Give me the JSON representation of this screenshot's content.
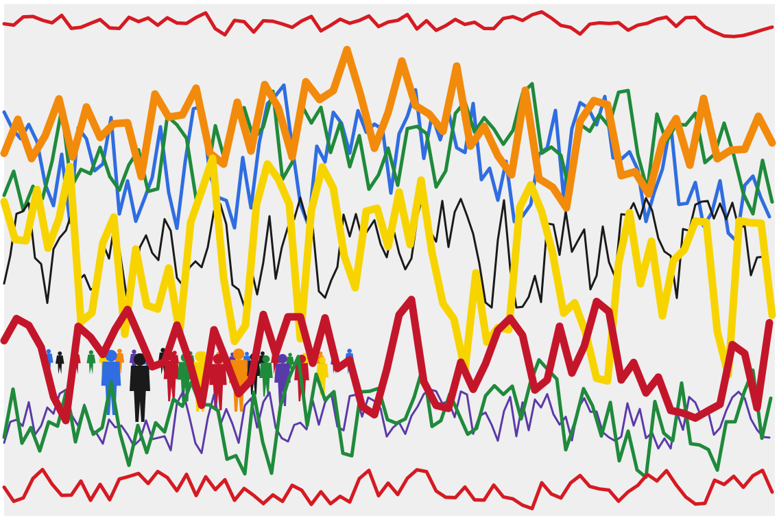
{
  "artwork": {
    "background_color": "#efefef",
    "frame_color": "#ffffff",
    "lines": [
      {
        "name": "red-top",
        "color": "#d61a22",
        "weight": "medium"
      },
      {
        "name": "orange",
        "color": "#f28a0c",
        "weight": "thick"
      },
      {
        "name": "blue",
        "color": "#2f6de0",
        "weight": "medium"
      },
      {
        "name": "green-upper",
        "color": "#1f8a3b",
        "weight": "medium"
      },
      {
        "name": "black",
        "color": "#1a1a1a",
        "weight": "thin"
      },
      {
        "name": "yellow",
        "color": "#f7d400",
        "weight": "thick"
      },
      {
        "name": "crimson",
        "color": "#c4162b",
        "weight": "thick"
      },
      {
        "name": "green-lower",
        "color": "#1f8a3b",
        "weight": "medium"
      },
      {
        "name": "purple",
        "color": "#5a3aa8",
        "weight": "thin"
      },
      {
        "name": "red-bottom",
        "color": "#d61a22",
        "weight": "medium"
      }
    ],
    "figures": {
      "description_colors": [
        "#2f6de0",
        "#1a1a1a",
        "#c4162b",
        "#1f8a3b",
        "#f7d400",
        "#f28a0c",
        "#5a3aa8"
      ]
    }
  }
}
